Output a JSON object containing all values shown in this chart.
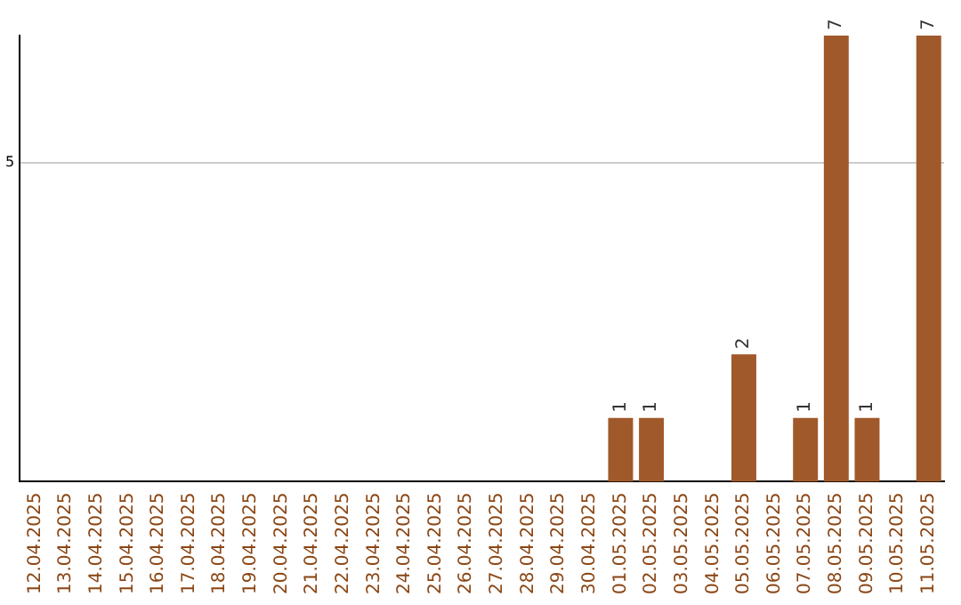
{
  "chart_data": {
    "type": "bar",
    "categories": [
      "12.04.2025",
      "13.04.2025",
      "14.04.2025",
      "15.04.2025",
      "16.04.2025",
      "17.04.2025",
      "18.04.2025",
      "19.04.2025",
      "20.04.2025",
      "21.04.2025",
      "22.04.2025",
      "23.04.2025",
      "24.04.2025",
      "25.04.2025",
      "26.04.2025",
      "27.04.2025",
      "28.04.2025",
      "29.04.2025",
      "30.04.2025",
      "01.05.2025",
      "02.05.2025",
      "03.05.2025",
      "04.05.2025",
      "05.05.2025",
      "06.05.2025",
      "07.05.2025",
      "08.05.2025",
      "09.05.2025",
      "10.05.2025",
      "11.05.2025"
    ],
    "values": [
      null,
      null,
      null,
      null,
      null,
      null,
      null,
      null,
      null,
      null,
      null,
      null,
      null,
      null,
      null,
      null,
      null,
      null,
      null,
      1,
      1,
      null,
      null,
      2,
      null,
      1,
      7,
      1,
      null,
      7
    ],
    "color": "#a0592b",
    "ylim": [
      0,
      7
    ],
    "yticks": [
      5
    ],
    "grid": "y",
    "data_labels": true,
    "legend": false
  }
}
